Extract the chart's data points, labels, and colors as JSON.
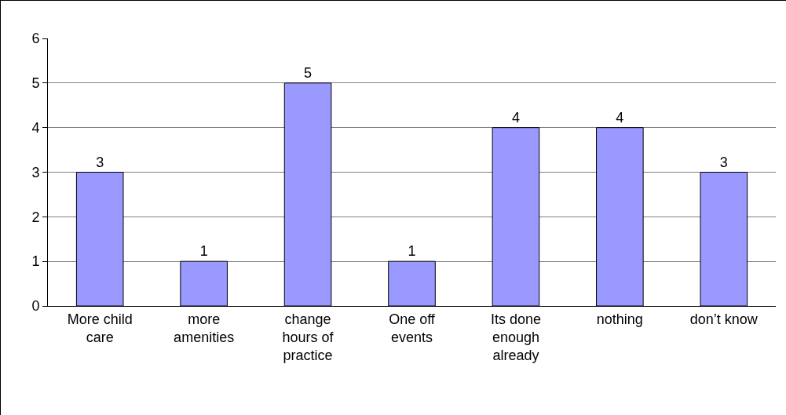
{
  "chart_data": {
    "type": "bar",
    "categories": [
      "More child care",
      "more amenities",
      "change hours of practice",
      "One off events",
      "Its done enough already",
      "nothing",
      "don’t know"
    ],
    "values": [
      3,
      1,
      5,
      1,
      4,
      4,
      3
    ],
    "color": "#9999ff",
    "ylim": [
      0,
      6
    ],
    "yticks": [
      0,
      1,
      2,
      3,
      4,
      5,
      6
    ],
    "grid": "y",
    "data_labels": true
  }
}
